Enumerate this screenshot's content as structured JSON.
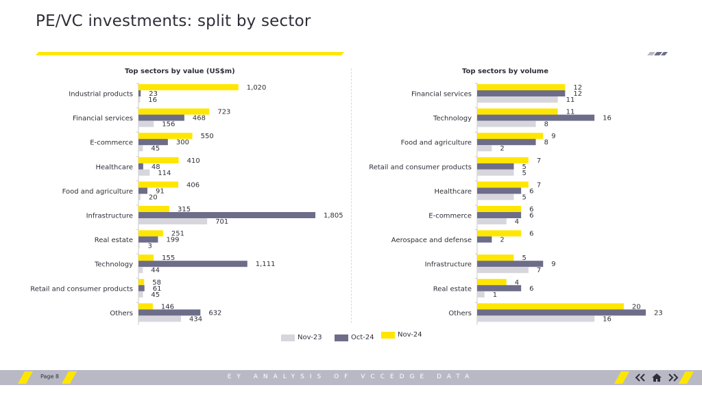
{
  "page": {
    "title": "PE/VC investments: split by sector",
    "footer_page": "Page 8",
    "footer_text": "EY ANALYSIS OF VCCEDGE DATA",
    "icons": [
      "double-chevron-left-icon",
      "home-icon",
      "double-chevron-right-icon"
    ]
  },
  "colors": {
    "nov23": "#d6d6dc",
    "oct24": "#6d6d8a",
    "nov24": "#ffe600",
    "text": "#2e2e38",
    "footer": "#b9b9c6"
  },
  "legend": [
    {
      "label": "Nov-23",
      "color": "#d6d6dc"
    },
    {
      "label": "Oct-24",
      "color": "#6d6d8a"
    },
    {
      "label": "Nov-24",
      "color": "#ffe600"
    }
  ],
  "chart_data": [
    {
      "type": "bar",
      "orientation": "horizontal",
      "title": "Top sectors by value (US$m)",
      "categories": [
        "Industrial products",
        "Financial services",
        "E-commerce",
        "Healthcare",
        "Food and agriculture",
        "Infrastructure",
        "Real estate",
        "Technology",
        "Retail and consumer products",
        "Others"
      ],
      "series": [
        {
          "name": "Nov-24",
          "color": "#ffe600",
          "values": [
            1020,
            723,
            550,
            410,
            406,
            315,
            251,
            155,
            58,
            146
          ],
          "labels": [
            "1,020",
            "723",
            "550",
            "410",
            "406",
            "315",
            "251",
            "155",
            "58",
            "146"
          ]
        },
        {
          "name": "Oct-24",
          "color": "#6d6d8a",
          "values": [
            23,
            468,
            300,
            48,
            91,
            1805,
            199,
            1111,
            61,
            632
          ],
          "labels": [
            "23",
            "468",
            "300",
            "48",
            "91",
            "1,805",
            "199",
            "1,111",
            "61",
            "632"
          ]
        },
        {
          "name": "Nov-23",
          "color": "#d6d6dc",
          "values": [
            16,
            156,
            45,
            114,
            20,
            701,
            3,
            44,
            45,
            434
          ],
          "labels": [
            "16",
            "156",
            "45",
            "114",
            "20",
            "701",
            "3",
            "44",
            "45",
            "434"
          ]
        }
      ],
      "xlim": [
        0,
        1805
      ]
    },
    {
      "type": "bar",
      "orientation": "horizontal",
      "title": "Top sectors by volume",
      "categories": [
        "Financial services",
        "Technology",
        "Food and agriculture",
        "Retail and consumer products",
        "Healthcare",
        "E-commerce",
        "Aerospace and defense",
        "Infrastructure",
        "Real estate",
        "Others"
      ],
      "series": [
        {
          "name": "Nov-24",
          "color": "#ffe600",
          "values": [
            12,
            11,
            9,
            7,
            7,
            6,
            6,
            5,
            4,
            20
          ],
          "labels": [
            "12",
            "11",
            "9",
            "7",
            "7",
            "6",
            "6",
            "5",
            "4",
            "20"
          ]
        },
        {
          "name": "Oct-24",
          "color": "#6d6d8a",
          "values": [
            12,
            16,
            8,
            5,
            6,
            6,
            2,
            9,
            6,
            23
          ],
          "labels": [
            "12",
            "16",
            "8",
            "5",
            "6",
            "6",
            "2",
            "9",
            "6",
            "23"
          ]
        },
        {
          "name": "Nov-23",
          "color": "#d6d6dc",
          "values": [
            11,
            8,
            2,
            5,
            5,
            4,
            0,
            7,
            1,
            16
          ],
          "labels": [
            "11",
            "8",
            "2",
            "5",
            "5",
            "4",
            "",
            "7",
            "1",
            "16"
          ]
        }
      ],
      "xlim": [
        0,
        23
      ]
    }
  ]
}
